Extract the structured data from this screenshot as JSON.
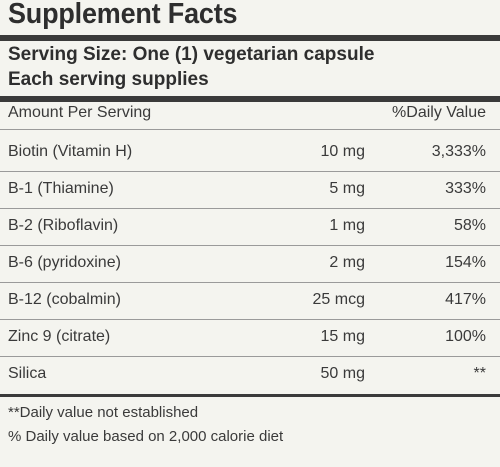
{
  "label": {
    "title": "Supplement Facts",
    "serving_size": "Serving Size: One (1) vegetarian capsule",
    "each_serving": "Each serving supplies",
    "header_left": "Amount Per Serving",
    "header_right": "%Daily Value",
    "rows": [
      {
        "name": "Biotin (Vitamin H)",
        "amount": "10 mg",
        "dv": "3,333%"
      },
      {
        "name": "B-1 (Thiamine)",
        "amount": "5 mg",
        "dv": "333%"
      },
      {
        "name": "B-2 (Riboflavin)",
        "amount": "1 mg",
        "dv": "58%"
      },
      {
        "name": "B-6 (pyridoxine)",
        "amount": "2 mg",
        "dv": "154%"
      },
      {
        "name": "B-12 (cobalmin)",
        "amount": "25 mcg",
        "dv": "417%"
      },
      {
        "name": "Zinc 9 (citrate)",
        "amount": "15 mg",
        "dv": "100%"
      },
      {
        "name": "Silica",
        "amount": "50 mg",
        "dv": "**"
      }
    ],
    "footnote_1": "**Daily value not established",
    "footnote_2": "% Daily value based on 2,000 calorie diet"
  }
}
